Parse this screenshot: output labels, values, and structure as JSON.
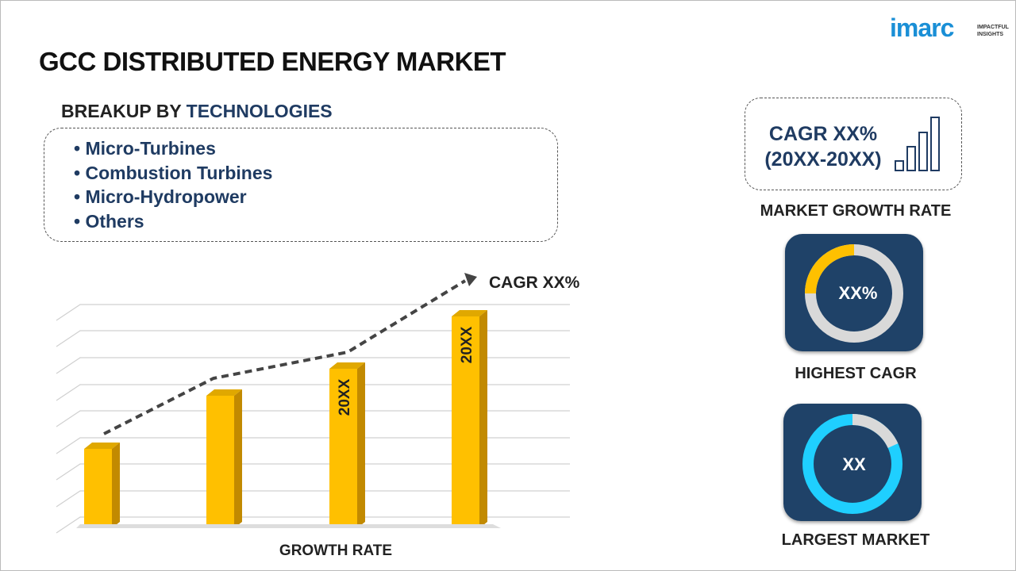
{
  "header": {
    "title": "GCC DISTRIBUTED ENERGY MARKET",
    "logo": "imarc",
    "logo_tagline": [
      "IMPACTFUL",
      "INSIGHTS"
    ]
  },
  "breakup": {
    "label": "BREAKUP BY",
    "dimension": "TECHNOLOGIES",
    "items": [
      "Micro-Turbines",
      "Combustion Turbines",
      "Micro-Hydropower",
      "Others"
    ]
  },
  "growth_chart": {
    "cagr_label": "CAGR XX%",
    "bar_labels": [
      "20XX",
      "20XX"
    ],
    "caption": "GROWTH RATE"
  },
  "side_panel": {
    "growth_rate": {
      "value": "CAGR XX%",
      "period": "(20XX-20XX)",
      "caption": "MARKET GROWTH RATE"
    },
    "highest_cagr": {
      "value": "XX%",
      "caption": "HIGHEST CAGR"
    },
    "largest_market": {
      "value": "XX",
      "caption": "LARGEST MARKET"
    }
  }
}
